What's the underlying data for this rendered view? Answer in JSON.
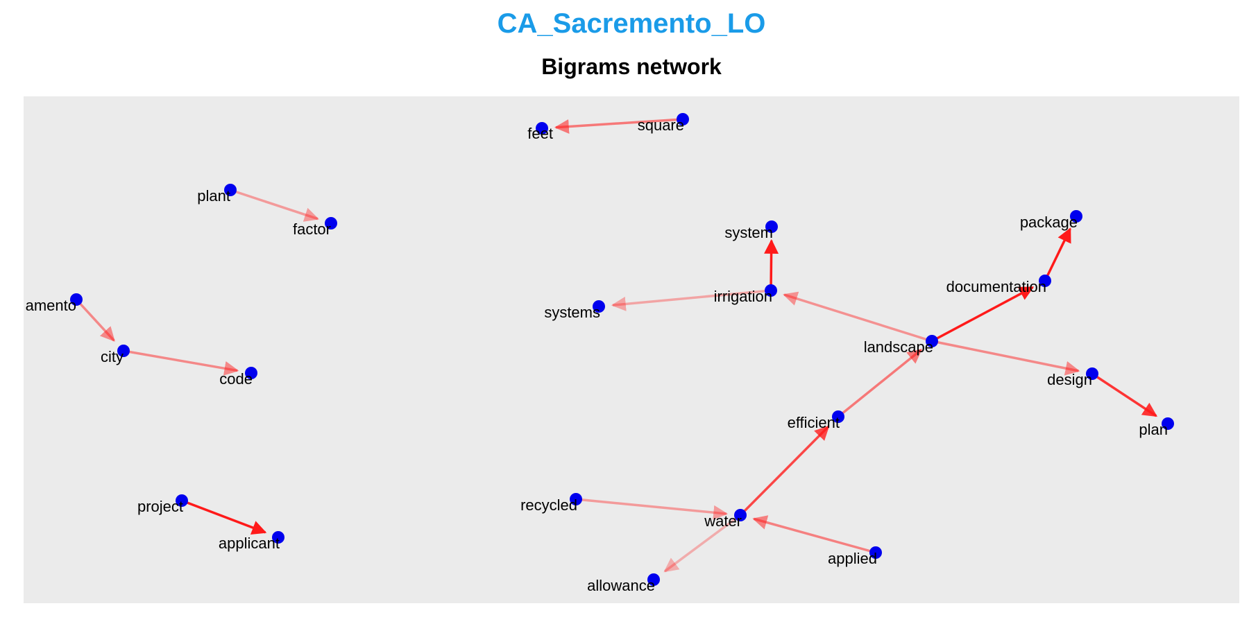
{
  "header": {
    "title": "CA_Sacremento_LO",
    "subtitle": "Bigrams network"
  },
  "colors": {
    "title": "#1a9be8",
    "panel_background": "#ebebeb",
    "node": "#0000ee",
    "edge": "#ff1a1a"
  },
  "graph": {
    "nodes": [
      {
        "id": "feet",
        "label": "feet"
      },
      {
        "id": "square",
        "label": "square"
      },
      {
        "id": "plant",
        "label": "plant"
      },
      {
        "id": "factor",
        "label": "factor"
      },
      {
        "id": "system",
        "label": "system"
      },
      {
        "id": "package",
        "label": "package"
      },
      {
        "id": "documentation",
        "label": "documentation"
      },
      {
        "id": "amento",
        "label": "amento"
      },
      {
        "id": "systems",
        "label": "systems"
      },
      {
        "id": "irrigation",
        "label": "irrigation"
      },
      {
        "id": "landscape",
        "label": "landscape"
      },
      {
        "id": "city",
        "label": "city"
      },
      {
        "id": "code",
        "label": "code"
      },
      {
        "id": "design",
        "label": "design"
      },
      {
        "id": "efficient",
        "label": "efficient"
      },
      {
        "id": "plan",
        "label": "plan"
      },
      {
        "id": "project",
        "label": "project"
      },
      {
        "id": "recycled",
        "label": "recycled"
      },
      {
        "id": "water",
        "label": "water"
      },
      {
        "id": "applicant",
        "label": "applicant"
      },
      {
        "id": "applied",
        "label": "applied"
      },
      {
        "id": "allowance",
        "label": "allowance"
      }
    ],
    "edges": [
      {
        "from": "square",
        "to": "feet",
        "weight": 0.45
      },
      {
        "from": "plant",
        "to": "factor",
        "weight": 0.25
      },
      {
        "from": "irrigation",
        "to": "system",
        "weight": 1.0
      },
      {
        "from": "documentation",
        "to": "package",
        "weight": 1.0
      },
      {
        "from": "landscape",
        "to": "documentation",
        "weight": 1.0
      },
      {
        "from": "irrigation",
        "to": "systems",
        "weight": 0.2
      },
      {
        "from": "landscape",
        "to": "irrigation",
        "weight": 0.3
      },
      {
        "from": "landscape",
        "to": "design",
        "weight": 0.35
      },
      {
        "from": "design",
        "to": "plan",
        "weight": 0.85
      },
      {
        "from": "efficient",
        "to": "landscape",
        "weight": 0.45
      },
      {
        "from": "water",
        "to": "efficient",
        "weight": 0.75
      },
      {
        "from": "recycled",
        "to": "water",
        "weight": 0.25
      },
      {
        "from": "applied",
        "to": "water",
        "weight": 0.4
      },
      {
        "from": "water",
        "to": "allowance",
        "weight": 0.15
      },
      {
        "from": "amento",
        "to": "city",
        "weight": 0.35
      },
      {
        "from": "city",
        "to": "code",
        "weight": 0.35
      },
      {
        "from": "project",
        "to": "applicant",
        "weight": 1.0
      }
    ]
  }
}
